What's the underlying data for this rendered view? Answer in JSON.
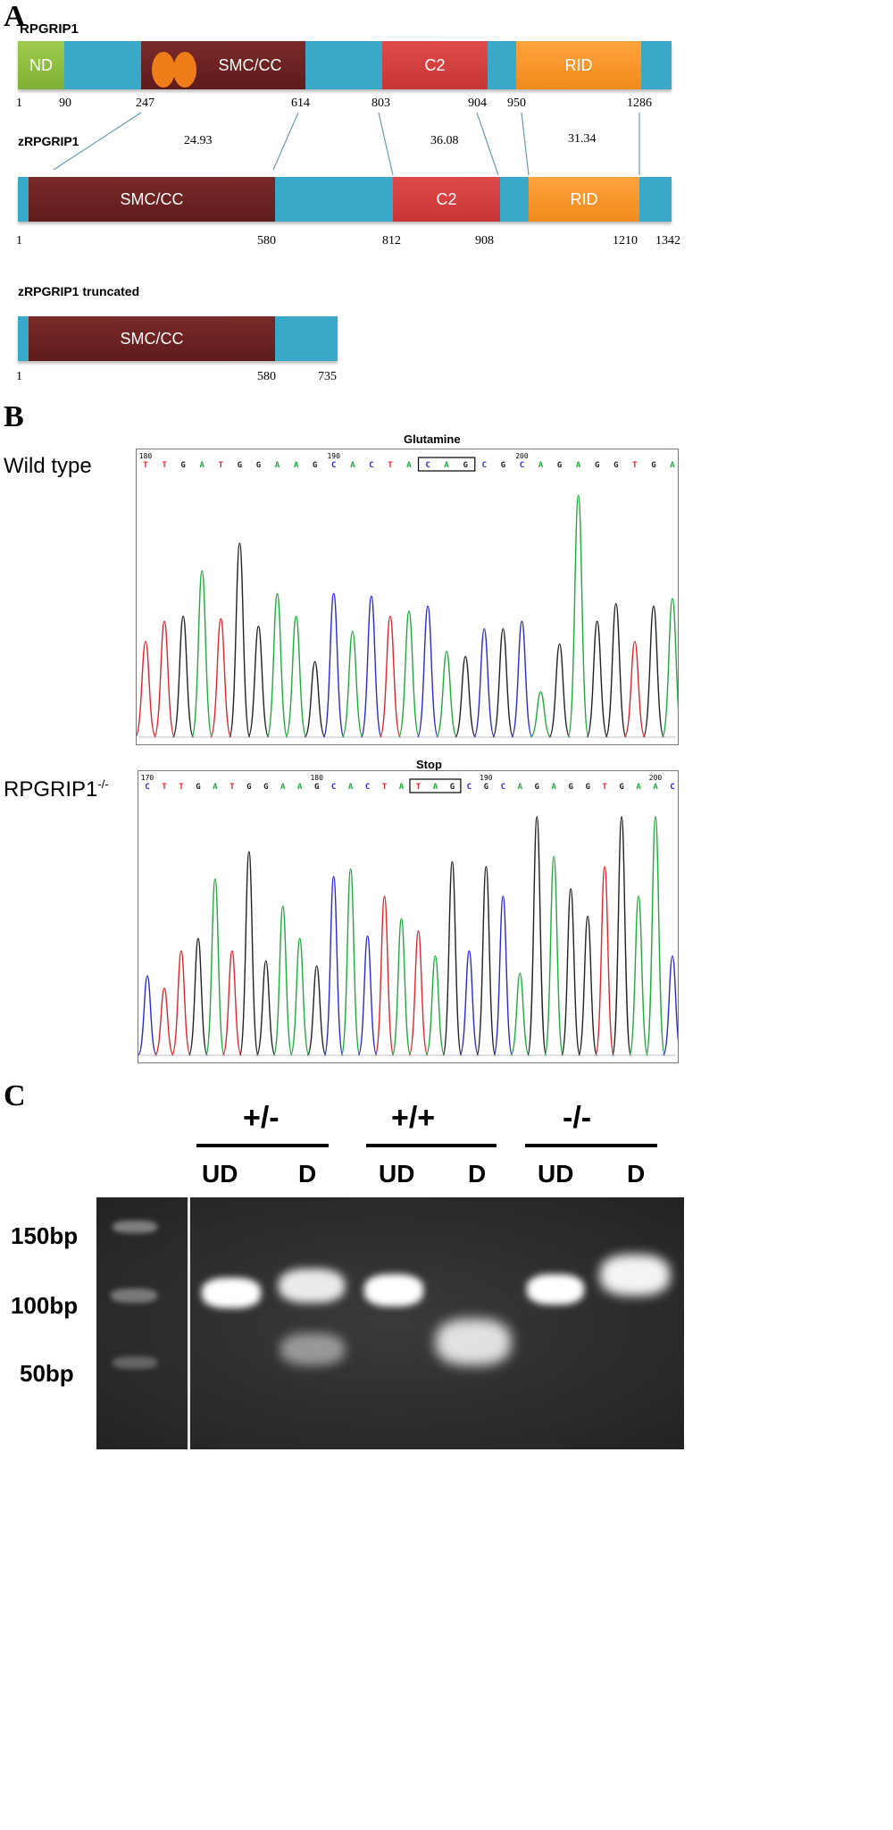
{
  "panel_a": {
    "letter": "A",
    "rpgrip1": {
      "title": "RPGRIP1",
      "domains": {
        "nd": "ND",
        "smc": "SMC/CC",
        "c2": "C2",
        "rid": "RID"
      },
      "positions": [
        "1",
        "90",
        "247",
        "614",
        "803",
        "904",
        "950",
        "1286"
      ]
    },
    "zrpgrip1": {
      "title": "zRPGRIP1",
      "domains": {
        "smc": "SMC/CC",
        "c2": "C2",
        "rid": "RID"
      },
      "positions": [
        "1",
        "580",
        "812",
        "908",
        "1210",
        "1342"
      ],
      "identities": [
        "24.93",
        "36.08",
        "31.34"
      ]
    },
    "truncated": {
      "title": "zRPGRIP1 truncated",
      "domains": {
        "smc": "SMC/CC"
      },
      "positions": [
        "1",
        "580",
        "735"
      ]
    },
    "colors": {
      "linker": "#3aa9c8",
      "smc": "#6b2222",
      "c2": "#d43f3f",
      "rid": "#f7931e",
      "nd": "#8dbf41",
      "motif": "#ee7d1a"
    }
  },
  "panel_b": {
    "letter": "B",
    "wild_type": {
      "label": "Wild type",
      "codon_label": "Glutamine",
      "seq": "TTGATGGAAGCACTACAGCGCAGAGGTGA",
      "ticks": [
        "180",
        "190",
        "200"
      ]
    },
    "mutant": {
      "label_main": "RPGRIP1",
      "label_sup": "-/-",
      "codon_label": "Stop",
      "seq": "CTTGATGGAAGCACTATAGCGCAGAGGTGAAC",
      "ticks": [
        "170",
        "180",
        "190",
        "200"
      ]
    },
    "base_colors": {
      "A": "#1faa3a",
      "C": "#2a2ad0",
      "G": "#222222",
      "T": "#e0262a"
    }
  },
  "panel_c": {
    "letter": "C",
    "genotypes": [
      "+/-",
      "+/+",
      "-/-"
    ],
    "lanes": [
      "UD",
      "D",
      "UD",
      "D",
      "UD",
      "D"
    ],
    "size_markers": [
      "150bp",
      "100bp",
      "50bp"
    ]
  }
}
